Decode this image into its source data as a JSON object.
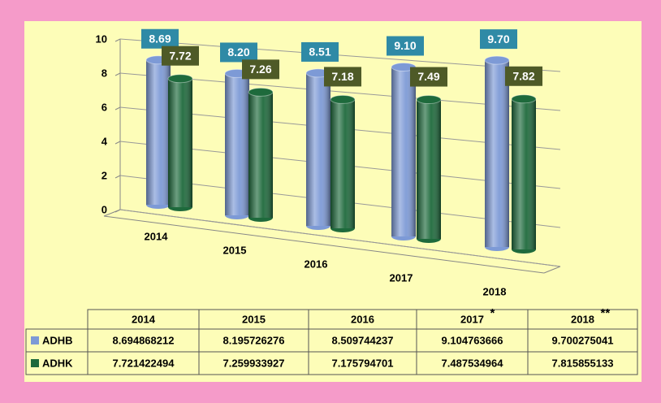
{
  "chart_data": {
    "type": "bar",
    "categories": [
      "2014",
      "2015",
      "2016",
      "2017",
      "2018"
    ],
    "category_notes": [
      null,
      null,
      null,
      "*",
      "**"
    ],
    "series": [
      {
        "name": "ADHB",
        "color": "#7d9ad6",
        "label_color": "#2f8aa6",
        "values": [
          8.694868212,
          8.195726276,
          8.509744237,
          9.104763666,
          9.700275041
        ],
        "value_labels": [
          "8.69",
          "8.20",
          "8.51",
          "9.10",
          "9.70"
        ]
      },
      {
        "name": "ADHK",
        "color": "#1e6a3c",
        "label_color": "#4e5a27",
        "values": [
          7.721422494,
          7.259933927,
          7.175794701,
          7.487534964,
          7.815855133
        ],
        "value_labels": [
          "7.72",
          "7.26",
          "7.18",
          "7.49",
          "7.82"
        ]
      }
    ],
    "ylim": [
      0,
      10
    ],
    "yticks": [
      0,
      2,
      4,
      6,
      8,
      10
    ],
    "grid": true
  }
}
